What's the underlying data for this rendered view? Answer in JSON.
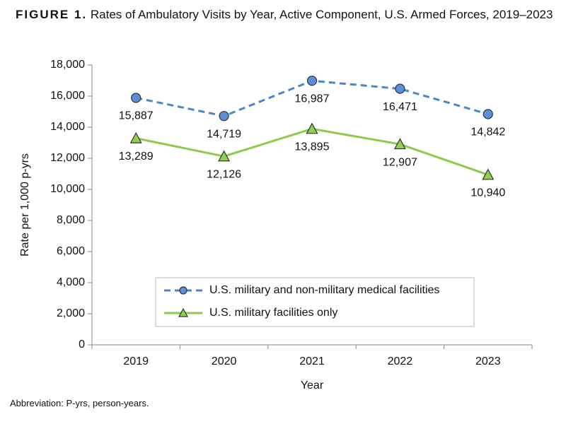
{
  "chart_data": {
    "type": "line",
    "figure_label": "FIGURE 1.",
    "title": "Rates of Ambulatory Visits by Year, Active Component, U.S. Armed Forces, 2019–2023",
    "xlabel": "Year",
    "ylabel": "Rate per 1,000 p-yrs",
    "footnote": "Abbreviation: P-yrs, person-years.",
    "categories": [
      "2019",
      "2020",
      "2021",
      "2022",
      "2023"
    ],
    "series": [
      {
        "name": "U.S. military and non-military medical facilities",
        "color": "#4a86c8",
        "marker_color": "#5b8fd8",
        "line_style": "dashed",
        "marker": "circle",
        "values": [
          15887,
          14719,
          16987,
          16471,
          14842
        ],
        "value_labels": [
          "15,887",
          "14,719",
          "16,987",
          "16,471",
          "14,842"
        ]
      },
      {
        "name": "U.S. military facilities only",
        "color": "#8dcb4a",
        "marker_color": "#92d050",
        "line_style": "solid",
        "marker": "triangle",
        "values": [
          13289,
          12126,
          13895,
          12907,
          10940
        ],
        "value_labels": [
          "13,289",
          "12,126",
          "13,895",
          "12,907",
          "10,940"
        ]
      }
    ],
    "ylim": [
      0,
      18000
    ],
    "yticks": [
      0,
      {
        "value": 2000,
        "label": "2,000"
      },
      {
        "value": 4000,
        "label": "4,000"
      },
      {
        "value": 6000,
        "label": "6,000"
      },
      {
        "value": 8000,
        "label": "8,000"
      },
      {
        "value": 10000,
        "label": "10,000"
      },
      {
        "value": 12000,
        "label": "12,000"
      },
      {
        "value": 14000,
        "label": "14,000"
      },
      {
        "value": 16000,
        "label": "16,000"
      },
      {
        "value": 18000,
        "label": "18,000"
      }
    ],
    "grid": false
  }
}
